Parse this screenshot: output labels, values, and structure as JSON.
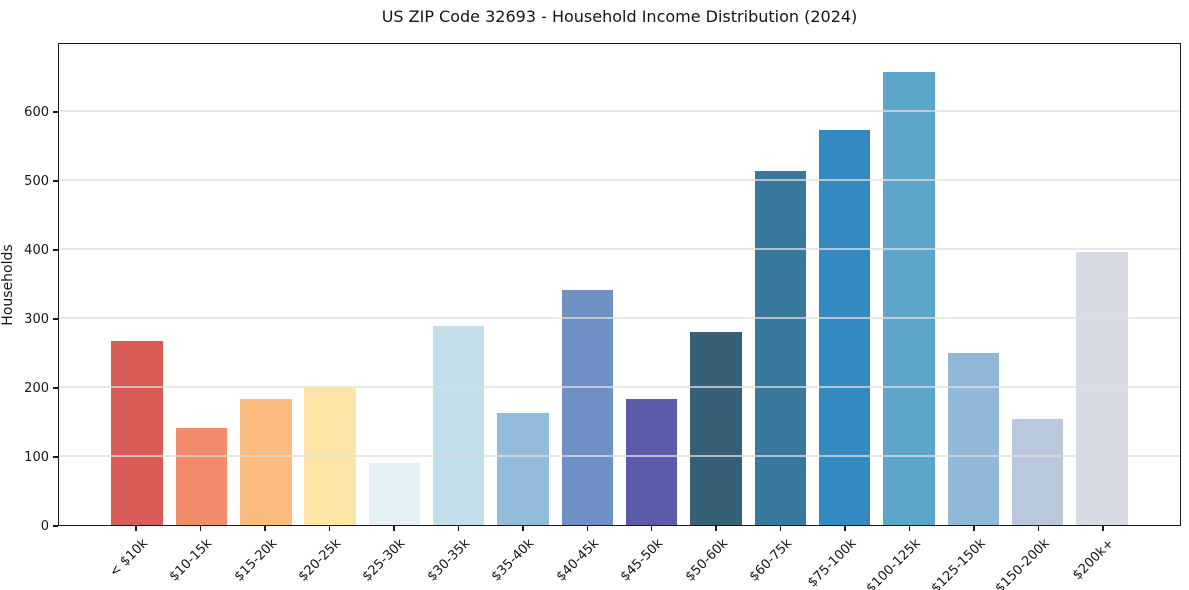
{
  "chart_data": {
    "type": "bar",
    "title": "US ZIP Code 32693 - Household Income Distribution (2024)",
    "xlabel": "",
    "ylabel": "Households",
    "categories": [
      "< $10k",
      "$10-15k",
      "$15-20k",
      "$20-25k",
      "$25-30k",
      "$30-35k",
      "$35-40k",
      "$40-45k",
      "$45-50k",
      "$50-60k",
      "$60-75k",
      "$75-100k",
      "$100-125k",
      "$125-150k",
      "$150-200k",
      "$200k+"
    ],
    "values": [
      268,
      141,
      183,
      200,
      90,
      290,
      163,
      342,
      183,
      281,
      515,
      575,
      660,
      250,
      155,
      397
    ],
    "bar_colors": [
      "#d95b55",
      "#f28b6b",
      "#fcbc7f",
      "#fde5a7",
      "#e3f0f6",
      "#c3dfec",
      "#92bcda",
      "#6e90c5",
      "#5b5ca9",
      "#366075",
      "#36799c",
      "#3489c0",
      "#5ba6c9",
      "#92b8d8",
      "#bac8de",
      "#d8dae6"
    ],
    "ylim": [
      0,
      700
    ],
    "yticks": [
      0,
      100,
      200,
      300,
      400,
      500,
      600
    ],
    "grid": true,
    "grid_axis": "y",
    "legend": null,
    "axis_color": "#1a1a1a",
    "background_color": "#ffffff"
  }
}
